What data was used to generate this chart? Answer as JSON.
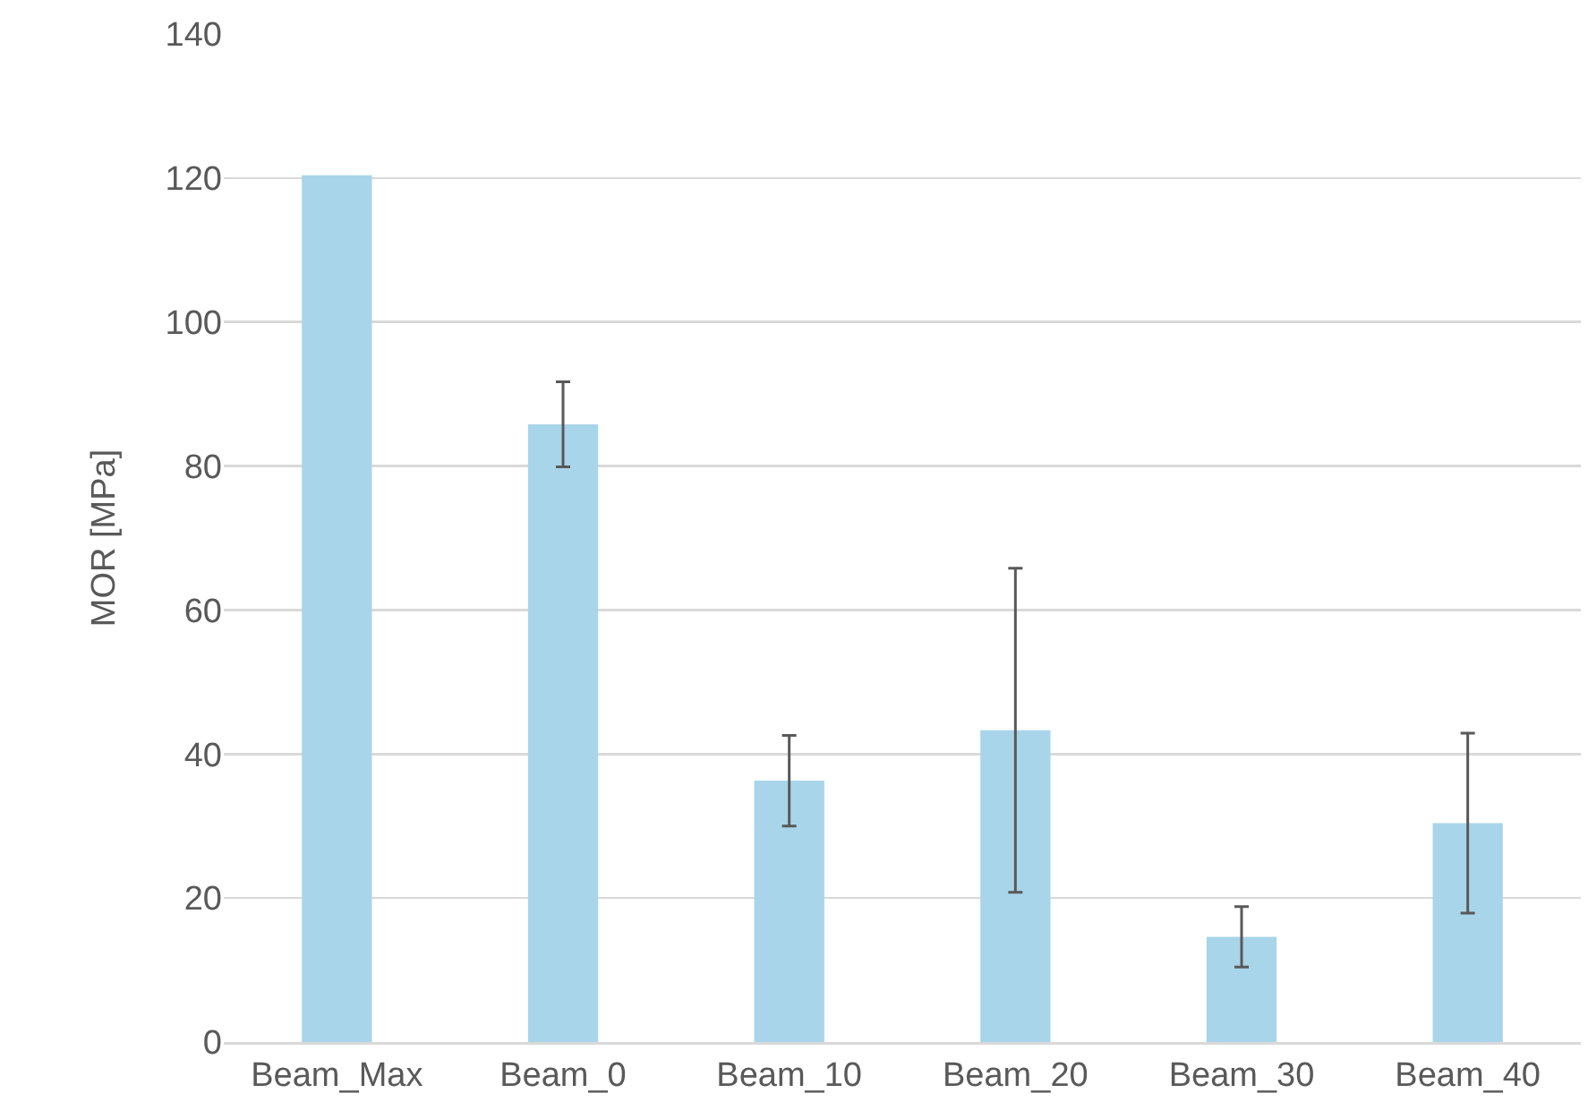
{
  "chart_data": {
    "type": "bar",
    "ylabel": "MOR [MPa]",
    "categories": [
      "Beam_Max",
      "Beam_0",
      "Beam_10",
      "Beam_20",
      "Beam_30",
      "Beam_40"
    ],
    "values": [
      120.4,
      85.8,
      36.3,
      43.3,
      14.6,
      30.4
    ],
    "errors": [
      null,
      5.9,
      6.3,
      22.5,
      4.2,
      12.5
    ],
    "color": "#a9d5ea",
    "ylim": [
      0,
      140
    ],
    "yticks": [
      0,
      20,
      40,
      60,
      80,
      100,
      120,
      140
    ],
    "grid": "y",
    "legend": false
  }
}
